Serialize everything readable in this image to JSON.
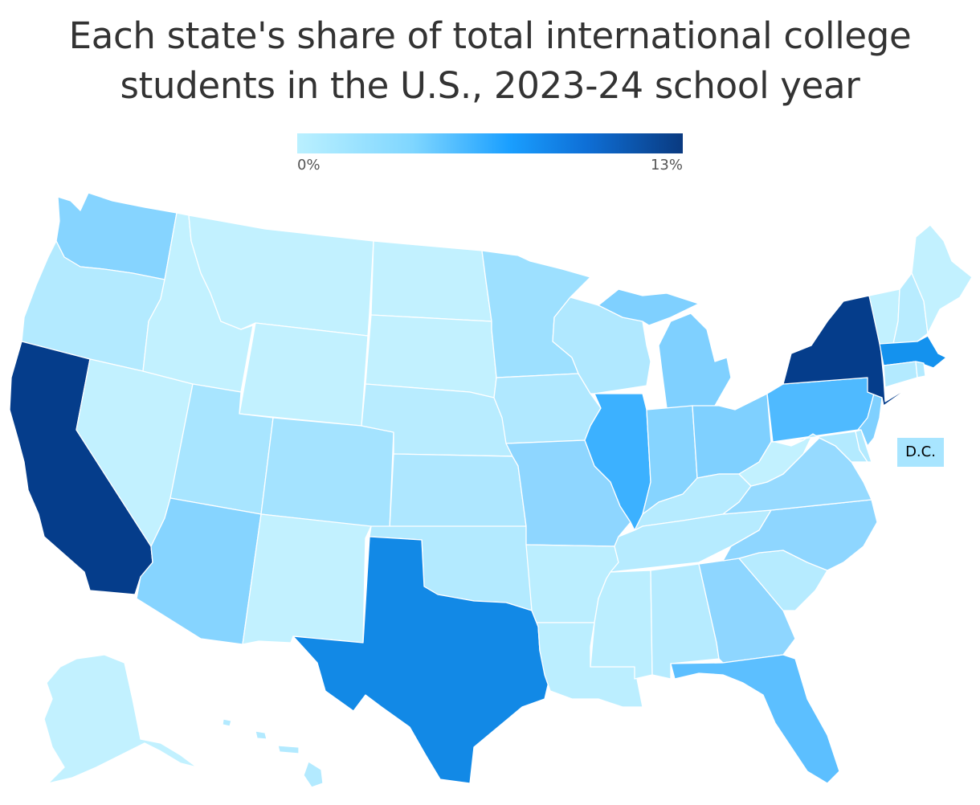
{
  "title": {
    "line1": "Each state's share of total international college",
    "line2": "students in the U.S., 2023‑24 school year"
  },
  "legend": {
    "min_label": "0%",
    "max_label": "13%",
    "min_value": 0,
    "max_value": 13,
    "color_stops": [
      "#baf0ff",
      "#7fd6ff",
      "#1a9fff",
      "#0e6fd6",
      "#0a3a80"
    ]
  },
  "dc_label": "D.C.",
  "state_fill_colors": {
    "CA": "#053d8b",
    "NY": "#053d8b",
    "TX": "#1289e6",
    "MA": "#1492ee",
    "IL": "#3cb1ff",
    "PA": "#4fbaff",
    "FL": "#5cbfff",
    "NJ": "#7fd0ff",
    "MI": "#7fd0ff",
    "OH": "#7fd0ff",
    "WA": "#86d4ff",
    "AZ": "#86d4ff",
    "IN": "#86d4ff",
    "MO": "#8ed6ff",
    "NC": "#8ed6ff",
    "GA": "#8ed6ff",
    "VA": "#96daff",
    "MN": "#9de0ff",
    "CO": "#a4e3ff",
    "UT": "#a8e5ff",
    "KS": "#aee7ff",
    "WI": "#b0e8ff",
    "IA": "#b0e8ff",
    "OR": "#b3eaff",
    "CT": "#b3eaff",
    "MD": "#b3eaff",
    "AL": "#b6ebff",
    "KY": "#b6ebff",
    "TN": "#b6ebff",
    "SC": "#b6ebff",
    "OK": "#b3eaff",
    "NE": "#b8ecff",
    "AR": "#bbeeff",
    "LA": "#bbeeff",
    "MS": "#bbeeff",
    "NH": "#b8ecff",
    "NV": "#c2f1ff",
    "ID": "#c2f1ff",
    "MT": "#c2f1ff",
    "WY": "#c2f1ff",
    "ND": "#c2f1ff",
    "SD": "#c2f1ff",
    "NM": "#c2f1ff",
    "WV": "#c2f1ff",
    "ME": "#c2f1ff",
    "VT": "#c2f1ff",
    "RI": "#b3eaff",
    "DE": "#b3eaff",
    "AK": "#c2f1ff",
    "HI": "#b3eaff",
    "DC": "#a8e5ff"
  }
}
